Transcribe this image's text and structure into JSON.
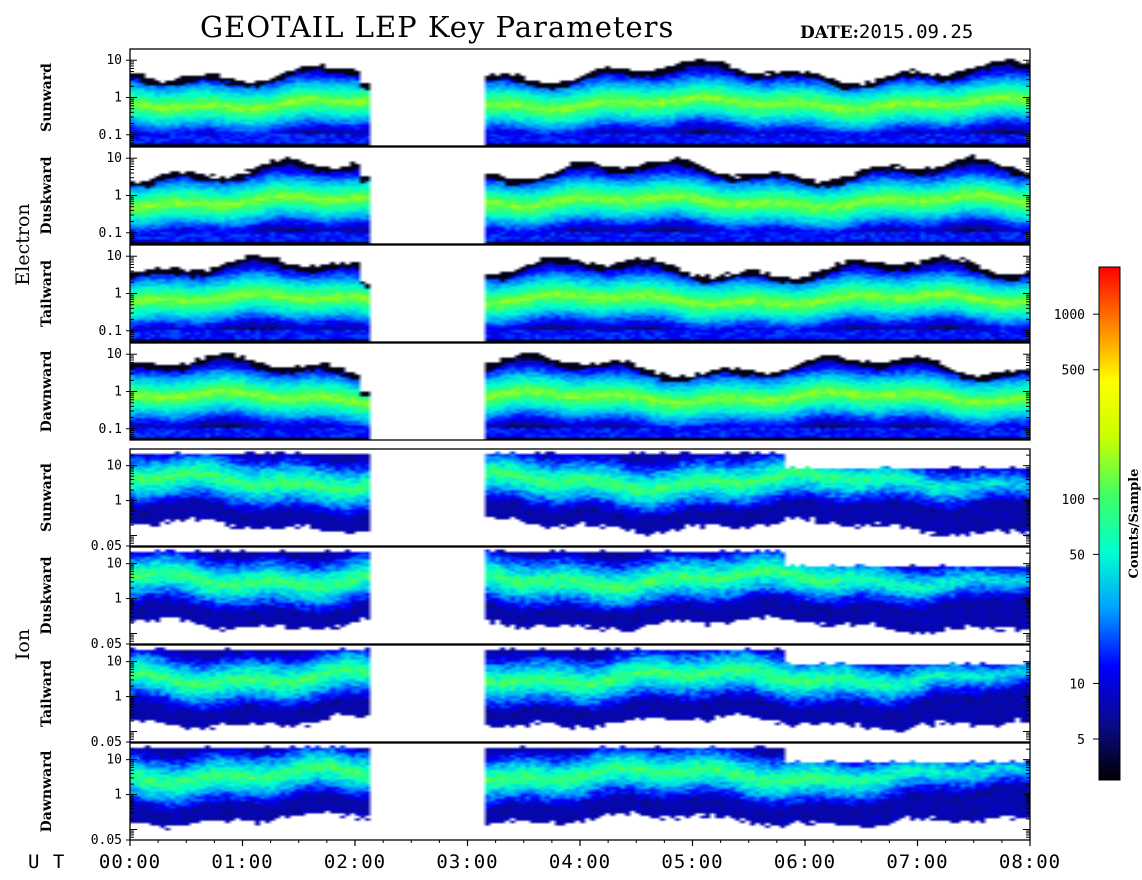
{
  "header": {
    "title": "GEOTAIL LEP Key Parameters",
    "date_label": "DATE:",
    "date_value": "2015.09.25"
  },
  "chart_data": {
    "type": "heatmap",
    "title": "GEOTAIL LEP Key Parameters",
    "x_axis_label": "U T",
    "x_ticks": [
      "00:00",
      "01:00",
      "02:00",
      "03:00",
      "04:00",
      "05:00",
      "06:00",
      "07:00",
      "08:00"
    ],
    "x_range_hours": [
      0,
      8
    ],
    "data_gap_hours": [
      2.1,
      3.15
    ],
    "groups": [
      {
        "name": "Electron",
        "y_scale": "log",
        "y_range": [
          0.05,
          20
        ],
        "y_ticks": [
          "10",
          "1",
          "0.1"
        ],
        "panels": [
          "Sunward",
          "Duskward",
          "Tailward",
          "Dawnward"
        ]
      },
      {
        "name": "Ion",
        "y_scale": "log",
        "y_range": [
          0.05,
          30
        ],
        "y_ticks": [
          "10",
          "1",
          "0.05"
        ],
        "panels": [
          "Sunward",
          "Duskward",
          "Tailward",
          "Dawnward"
        ]
      }
    ],
    "colorbar": {
      "label": "Counts/Sample",
      "scale": "log",
      "range": [
        3,
        1800
      ],
      "ticks": [
        "1000",
        "500",
        "100",
        "50",
        "10",
        "5"
      ],
      "colormap": [
        "#000000",
        "#0a0a8c",
        "#0000ff",
        "#00a0ff",
        "#00ffd0",
        "#40ff60",
        "#c8ff00",
        "#ffff00",
        "#ff8000",
        "#ff0000"
      ]
    }
  }
}
